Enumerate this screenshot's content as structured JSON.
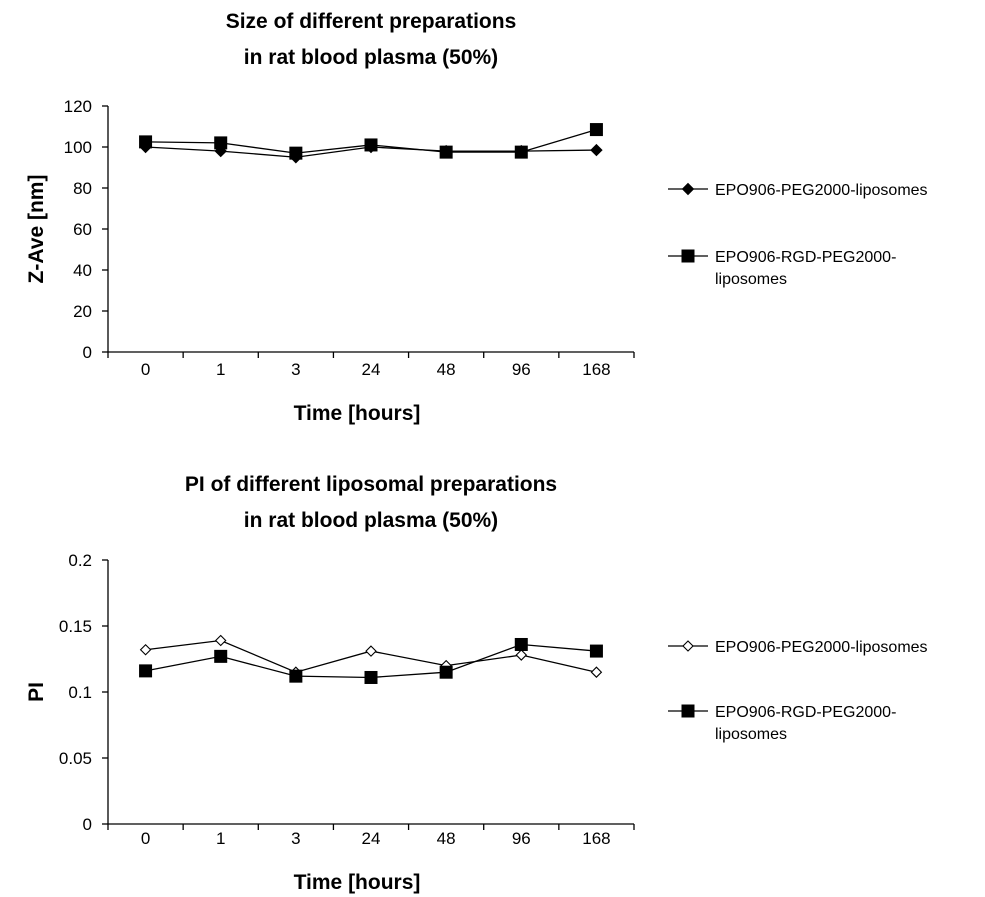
{
  "chart_data": [
    {
      "type": "line",
      "title": [
        "Size of different preparations",
        "in rat blood plasma (50%)"
      ],
      "xlabel": "Time [hours]",
      "ylabel": "Z-Ave [nm]",
      "categories": [
        "0",
        "1",
        "3",
        "24",
        "48",
        "96",
        "168"
      ],
      "ylim": [
        0,
        120
      ],
      "yticks": [
        "0",
        "20",
        "40",
        "60",
        "80",
        "100",
        "120"
      ],
      "yticks_values": [
        0,
        20,
        40,
        60,
        80,
        100,
        120
      ],
      "grid": false,
      "legend_position": "right",
      "series": [
        {
          "name": "EPO906-PEG2000-liposomes",
          "legend_lines": [
            "EPO906-PEG2000-liposomes"
          ],
          "marker": "diamond-filled",
          "values": [
            100,
            98,
            95,
            100,
            98,
            98,
            98.5
          ]
        },
        {
          "name": "EPO906-RGD-PEG2000-liposomes",
          "legend_lines": [
            "EPO906-RGD-PEG2000-",
            "liposomes"
          ],
          "marker": "square-filled",
          "values": [
            102.5,
            102,
            97,
            101,
            97.5,
            97.5,
            108.5
          ]
        }
      ]
    },
    {
      "type": "line",
      "title": [
        "PI of different liposomal preparations",
        "in rat blood plasma (50%)"
      ],
      "xlabel": "Time [hours]",
      "ylabel": "PI",
      "categories": [
        "0",
        "1",
        "3",
        "24",
        "48",
        "96",
        "168"
      ],
      "ylim": [
        0,
        0.2
      ],
      "yticks": [
        "0",
        "0.05",
        "0.1",
        "0.15",
        "0.2"
      ],
      "yticks_values": [
        0,
        0.05,
        0.1,
        0.15,
        0.2
      ],
      "grid": false,
      "legend_position": "right",
      "series": [
        {
          "name": "EPO906-PEG2000-liposomes",
          "legend_lines": [
            "EPO906-PEG2000-liposomes"
          ],
          "marker": "diamond-open",
          "values": [
            0.132,
            0.139,
            0.115,
            0.131,
            0.12,
            0.128,
            0.115
          ]
        },
        {
          "name": "EPO906-RGD-PEG2000-liposomes",
          "legend_lines": [
            "EPO906-RGD-PEG2000-",
            "liposomes"
          ],
          "marker": "square-filled",
          "values": [
            0.116,
            0.127,
            0.112,
            0.111,
            0.115,
            0.136,
            0.131
          ]
        }
      ]
    }
  ]
}
